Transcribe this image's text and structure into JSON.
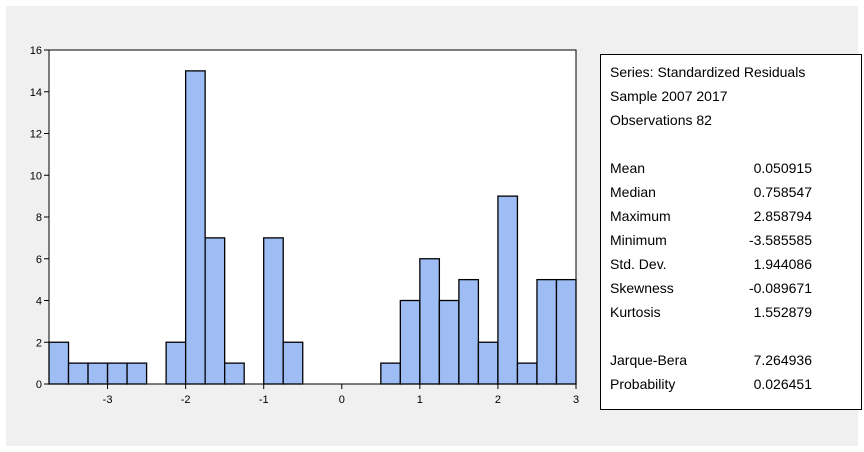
{
  "chart_data": {
    "type": "bar",
    "x_range": [
      -3.75,
      3.0
    ],
    "bins": [
      {
        "left": -3.75,
        "right": -3.5,
        "value": 2
      },
      {
        "left": -3.5,
        "right": -3.25,
        "value": 1
      },
      {
        "left": -3.25,
        "right": -3.0,
        "value": 1
      },
      {
        "left": -3.0,
        "right": -2.75,
        "value": 1
      },
      {
        "left": -2.75,
        "right": -2.5,
        "value": 1
      },
      {
        "left": -2.5,
        "right": -2.25,
        "value": 0
      },
      {
        "left": -2.25,
        "right": -2.0,
        "value": 2
      },
      {
        "left": -2.0,
        "right": -1.75,
        "value": 15
      },
      {
        "left": -1.75,
        "right": -1.5,
        "value": 7
      },
      {
        "left": -1.5,
        "right": -1.25,
        "value": 1
      },
      {
        "left": -1.25,
        "right": -1.0,
        "value": 0
      },
      {
        "left": -1.0,
        "right": -0.75,
        "value": 7
      },
      {
        "left": -0.75,
        "right": -0.5,
        "value": 2
      },
      {
        "left": -0.5,
        "right": -0.25,
        "value": 0
      },
      {
        "left": -0.25,
        "right": 0.0,
        "value": 0
      },
      {
        "left": 0.0,
        "right": 0.25,
        "value": 0
      },
      {
        "left": 0.25,
        "right": 0.5,
        "value": 0
      },
      {
        "left": 0.5,
        "right": 0.75,
        "value": 1
      },
      {
        "left": 0.75,
        "right": 1.0,
        "value": 4
      },
      {
        "left": 1.0,
        "right": 1.25,
        "value": 6
      },
      {
        "left": 1.25,
        "right": 1.5,
        "value": 4
      },
      {
        "left": 1.5,
        "right": 1.75,
        "value": 5
      },
      {
        "left": 1.75,
        "right": 2.0,
        "value": 2
      },
      {
        "left": 2.0,
        "right": 2.25,
        "value": 9
      },
      {
        "left": 2.25,
        "right": 2.5,
        "value": 1
      },
      {
        "left": 2.5,
        "right": 2.75,
        "value": 5
      },
      {
        "left": 2.75,
        "right": 3.0,
        "value": 5
      }
    ],
    "xticks": [
      "-3",
      "-2",
      "-1",
      "0",
      "1",
      "2",
      "3"
    ],
    "yticks": [
      "0",
      "2",
      "4",
      "6",
      "8",
      "10",
      "12",
      "14",
      "16"
    ],
    "ylim": [
      0,
      16
    ],
    "title": "",
    "xlabel": "",
    "ylabel": "",
    "grid": false,
    "colors": {
      "bar_fill": "#9ebdf5",
      "bar_stroke": "#000000",
      "plot_bg": "#ffffff",
      "panel_bg": "#f0f0f0"
    }
  },
  "stats": {
    "series": "Series: Standardized Residuals",
    "sample": "Sample 2007 2017",
    "observations": "Observations 82",
    "rows": [
      {
        "label": "Mean",
        "value": "0.050915"
      },
      {
        "label": "Median",
        "value": "0.758547"
      },
      {
        "label": "Maximum",
        "value": "2.858794"
      },
      {
        "label": "Minimum",
        "value": "-3.585585"
      },
      {
        "label": "Std. Dev.",
        "value": "1.944086"
      },
      {
        "label": "Skewness",
        "value": "-0.089671"
      },
      {
        "label": "Kurtosis",
        "value": "1.552879"
      }
    ],
    "tests": [
      {
        "label": "Jarque-Bera",
        "value": "7.264936"
      },
      {
        "label": "Probability",
        "value": "0.026451"
      }
    ]
  }
}
